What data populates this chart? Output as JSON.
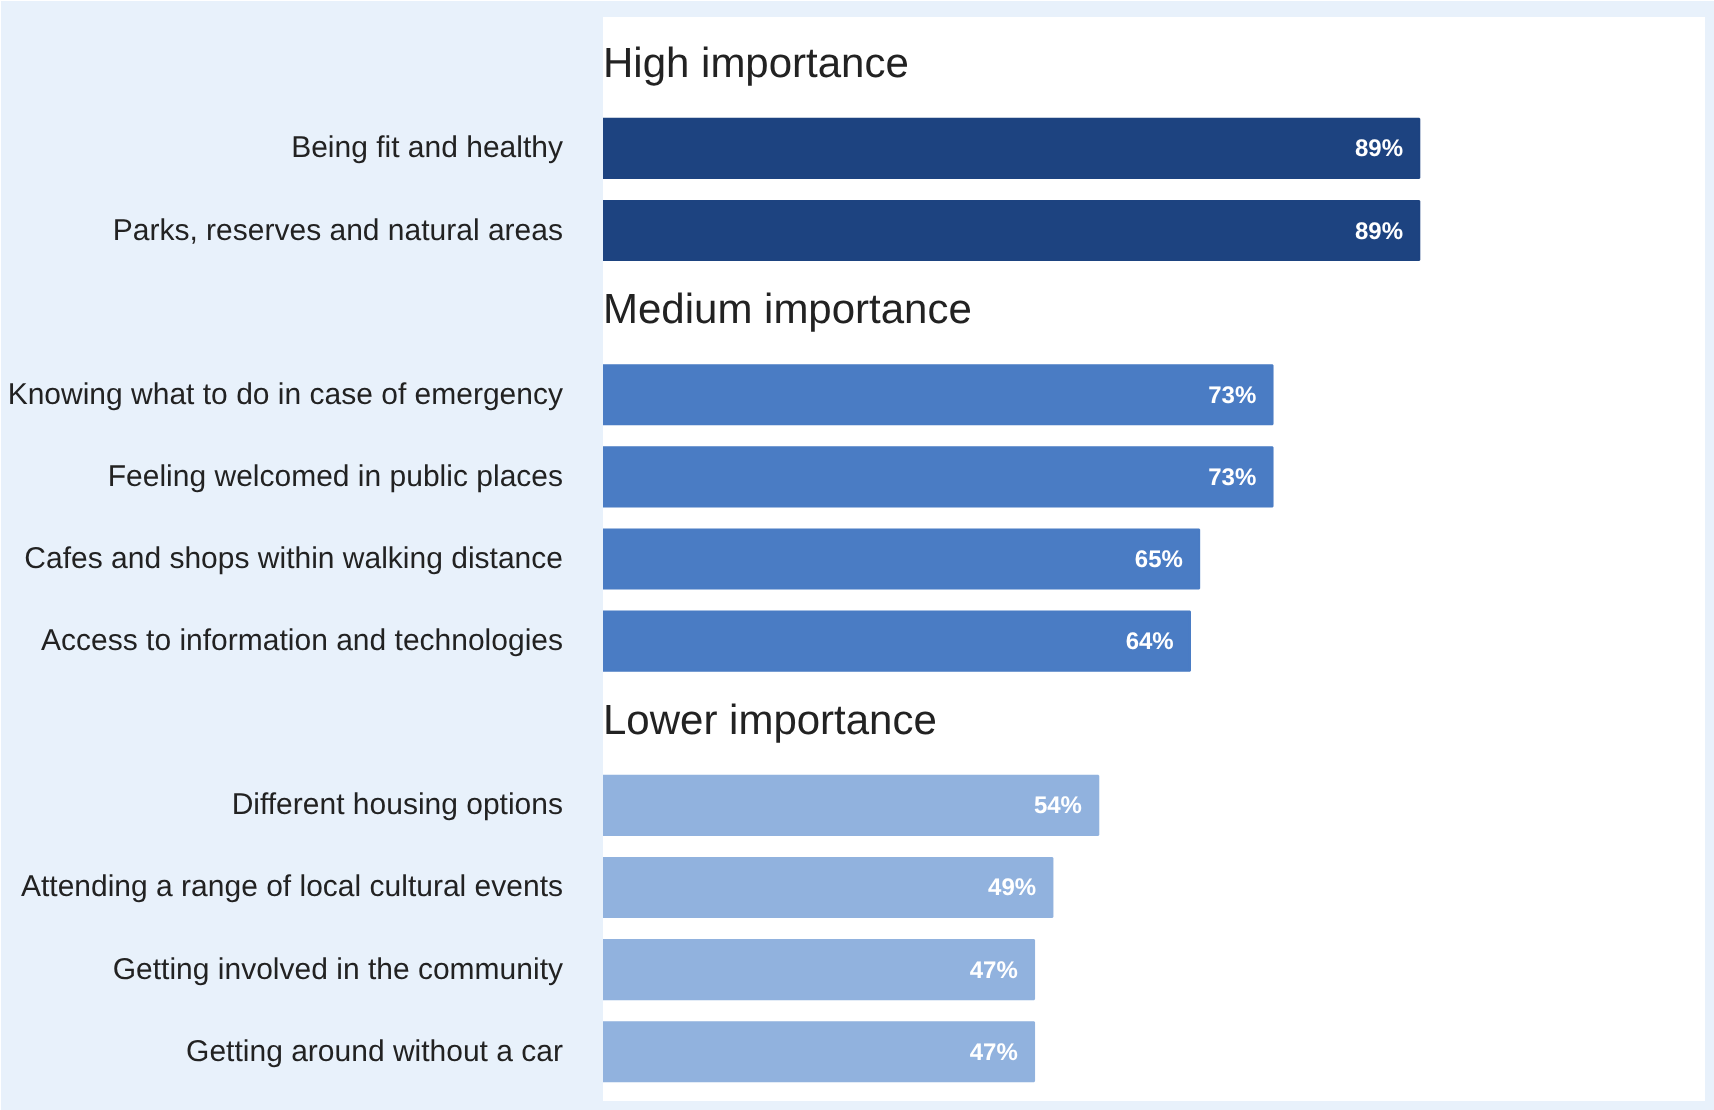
{
  "chart_data": {
    "type": "bar",
    "orientation": "horizontal",
    "tick_labels": "y",
    "grid": false,
    "categories": [
      "Being fit and healthy",
      "Parks, reserves and natural areas",
      "Knowing what to do in case of emergency",
      "Feeling welcomed in public places",
      "Cafes and shops within walking distance",
      "Access to information and technologies",
      "Different housing options",
      "Attending a range of local cultural events",
      "Getting involved in the community",
      "Getting around without a car"
    ],
    "values": [
      89,
      89,
      73,
      73,
      65,
      64,
      54,
      49,
      47,
      47
    ],
    "value_labels": [
      "89%",
      "89%",
      "73%",
      "73%",
      "65%",
      "64%",
      "54%",
      "49%",
      "47%",
      "47%"
    ],
    "colors": [
      "#1d4380",
      "#1d4380",
      "#4a7cc4",
      "#4a7cc4",
      "#4a7cc4",
      "#4a7cc4",
      "#91b2de",
      "#91b2de",
      "#91b2de",
      "#91b2de"
    ],
    "annotations": [
      "High importance",
      "Medium importance",
      "Lower importance"
    ]
  }
}
